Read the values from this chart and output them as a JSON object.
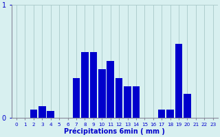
{
  "title": "",
  "xlabel": "Précipitations 6min ( mm )",
  "hours": [
    0,
    1,
    2,
    3,
    4,
    5,
    6,
    7,
    8,
    9,
    10,
    11,
    12,
    13,
    14,
    15,
    16,
    17,
    18,
    19,
    20,
    21,
    22,
    23
  ],
  "values": [
    0,
    0,
    0.07,
    0.1,
    0.06,
    0,
    0,
    0.35,
    0.58,
    0.58,
    0.43,
    0.5,
    0.35,
    0.28,
    0.28,
    0,
    0,
    0.07,
    0.07,
    0.65,
    0.21,
    0,
    0,
    0
  ],
  "bar_color": "#0000cc",
  "bg_color": "#d8f0f0",
  "plot_bg_color": "#d8f0f0",
  "grid_color": "#a8c8c8",
  "axis_color": "#888899",
  "ylim": [
    0,
    1.0
  ],
  "yticks": [
    0,
    1
  ],
  "xlabel_color": "#0000cc",
  "tick_color": "#0000cc",
  "bar_width": 0.85
}
